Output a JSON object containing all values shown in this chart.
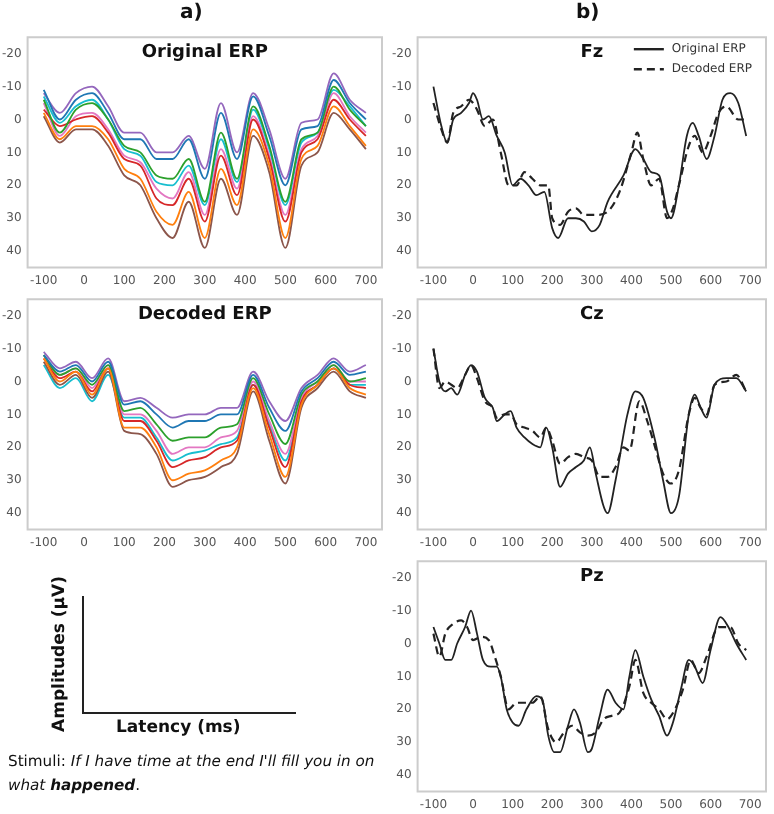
{
  "chart_data": [
    {
      "type": "line",
      "title": "Original ERP",
      "x": [
        -100,
        -60,
        -20,
        20,
        60,
        100,
        140,
        180,
        220,
        260,
        300,
        340,
        380,
        420,
        460,
        500,
        540,
        580,
        620,
        660,
        700
      ],
      "xlim": [
        -140,
        740
      ],
      "xticks": [
        -100,
        0,
        100,
        200,
        300,
        400,
        500,
        600,
        700
      ],
      "ylim": [
        45,
        -25
      ],
      "yticks": [
        -20,
        -10,
        0,
        10,
        20,
        30,
        40
      ],
      "marker": "none",
      "series": [
        {
          "color": "#1f77b4",
          "values": [
            -9,
            0,
            -6,
            -8,
            -2,
            6,
            6,
            12,
            12,
            6,
            18,
            -2,
            12,
            -7,
            5,
            20,
            3,
            2,
            -12,
            -5,
            0
          ]
        },
        {
          "color": "#ff7f0e",
          "values": [
            -2,
            6,
            2,
            2,
            6,
            15,
            18,
            28,
            32,
            22,
            36,
            15,
            26,
            3,
            14,
            36,
            12,
            8,
            -4,
            2,
            8
          ]
        },
        {
          "color": "#2ca02c",
          "values": [
            -6,
            4,
            -3,
            -5,
            0,
            8,
            10,
            17,
            18,
            12,
            25,
            4,
            18,
            -4,
            8,
            25,
            6,
            4,
            -10,
            -3,
            2
          ]
        },
        {
          "color": "#d62728",
          "values": [
            -3,
            2,
            0,
            -1,
            4,
            12,
            14,
            24,
            26,
            18,
            31,
            11,
            23,
            0,
            12,
            31,
            10,
            6,
            -6,
            0,
            5
          ]
        },
        {
          "color": "#9467bd",
          "values": [
            -8,
            -2,
            -8,
            -10,
            -4,
            4,
            4,
            10,
            10,
            5,
            15,
            -5,
            10,
            -8,
            3,
            18,
            1,
            0,
            -14,
            -6,
            -2
          ]
        },
        {
          "color": "#8c564b",
          "values": [
            -1,
            7,
            3,
            3,
            8,
            17,
            20,
            30,
            36,
            25,
            39,
            18,
            29,
            5,
            16,
            39,
            14,
            10,
            -2,
            3,
            9
          ]
        },
        {
          "color": "#e377c2",
          "values": [
            -5,
            5,
            -1,
            -2,
            3,
            11,
            13,
            21,
            24,
            16,
            29,
            9,
            21,
            -1,
            11,
            29,
            9,
            5,
            -8,
            -1,
            4
          ]
        },
        {
          "color": "#17becf",
          "values": [
            -7,
            1,
            -4,
            -6,
            0,
            9,
            11,
            19,
            20,
            14,
            26,
            6,
            19,
            -3,
            9,
            26,
            7,
            4,
            -9,
            -4,
            2
          ]
        }
      ]
    },
    {
      "type": "line",
      "title": "Decoded ERP",
      "x": [
        -100,
        -60,
        -20,
        20,
        60,
        100,
        140,
        180,
        220,
        260,
        300,
        340,
        380,
        420,
        460,
        500,
        540,
        580,
        620,
        660,
        700
      ],
      "xlim": [
        -140,
        740
      ],
      "xticks": [
        -100,
        0,
        100,
        200,
        300,
        400,
        500,
        600,
        700
      ],
      "ylim": [
        45,
        -25
      ],
      "yticks": [
        -20,
        -10,
        0,
        10,
        20,
        30,
        40
      ],
      "marker": "none",
      "series": [
        {
          "color": "#1f77b4",
          "values": [
            -8,
            -3,
            -5,
            0,
            -6,
            7,
            6,
            10,
            14,
            12,
            12,
            10,
            10,
            -2,
            8,
            15,
            3,
            -1,
            -6,
            -2,
            -3
          ]
        },
        {
          "color": "#ff7f0e",
          "values": [
            -7,
            0,
            -3,
            4,
            -4,
            14,
            14,
            20,
            30,
            28,
            27,
            24,
            20,
            2,
            16,
            29,
            7,
            1,
            -4,
            2,
            4
          ]
        },
        {
          "color": "#2ca02c",
          "values": [
            -8,
            -2,
            -4,
            1,
            -5,
            9,
            8,
            13,
            18,
            17,
            17,
            14,
            13,
            -1,
            10,
            19,
            4,
            0,
            -5,
            0,
            -1
          ]
        },
        {
          "color": "#d62728",
          "values": [
            -7,
            -1,
            -3,
            3,
            -4,
            12,
            12,
            18,
            26,
            24,
            23,
            20,
            18,
            1,
            14,
            26,
            6,
            1,
            -4,
            1,
            2
          ]
        },
        {
          "color": "#9467bd",
          "values": [
            -9,
            -4,
            -6,
            -1,
            -7,
            6,
            5,
            8,
            11,
            10,
            10,
            8,
            8,
            -3,
            6,
            12,
            2,
            -2,
            -7,
            -3,
            -5
          ]
        },
        {
          "color": "#8c564b",
          "values": [
            -6,
            1,
            -2,
            5,
            -3,
            15,
            16,
            22,
            32,
            30,
            29,
            26,
            22,
            3,
            18,
            31,
            8,
            2,
            -3,
            3,
            5
          ]
        },
        {
          "color": "#e377c2",
          "values": [
            -8,
            -2,
            -4,
            2,
            -5,
            10,
            10,
            15,
            22,
            20,
            20,
            17,
            15,
            0,
            12,
            22,
            5,
            0,
            -5,
            0,
            0
          ]
        },
        {
          "color": "#17becf",
          "values": [
            -5,
            2,
            -1,
            6,
            -2,
            11,
            11,
            17,
            24,
            22,
            21,
            19,
            17,
            1,
            13,
            24,
            6,
            1,
            -4,
            1,
            1
          ]
        }
      ]
    },
    {
      "type": "line",
      "title": "Fz",
      "xlim": [
        -140,
        740
      ],
      "xticks": [
        -100,
        0,
        100,
        200,
        300,
        400,
        500,
        600,
        700
      ],
      "ylim": [
        45,
        -25
      ],
      "yticks": [
        -20,
        -10,
        0,
        10,
        20,
        30,
        40
      ],
      "marker": "none",
      "legend": "top right",
      "series": [
        {
          "name": "Original ERP",
          "color": "#222222",
          "line_style": "solid",
          "x": [
            -100,
            -80,
            -65,
            -50,
            -30,
            -10,
            0,
            10,
            25,
            40,
            60,
            80,
            100,
            120,
            140,
            160,
            180,
            200,
            215,
            240,
            260,
            280,
            300,
            320,
            340,
            380,
            410,
            430,
            450,
            470,
            490,
            500,
            520,
            540,
            555,
            570,
            590,
            610,
            630,
            650,
            670,
            690
          ],
          "values": [
            -10,
            2,
            7,
            0,
            -2,
            -5,
            -8,
            -6,
            0,
            -1,
            5,
            10,
            20,
            18,
            20,
            23,
            22,
            33,
            36,
            30,
            30,
            31,
            34,
            32,
            25,
            17,
            9,
            12,
            16,
            17,
            28,
            30,
            20,
            5,
            1,
            5,
            12,
            5,
            -6,
            -8,
            -5,
            5
          ]
        },
        {
          "name": "Decoded ERP",
          "color": "#222222",
          "line_style": "dashed",
          "x": [
            -100,
            -80,
            -65,
            -50,
            -30,
            -10,
            0,
            10,
            30,
            50,
            70,
            90,
            110,
            130,
            150,
            170,
            190,
            200,
            220,
            240,
            260,
            280,
            310,
            340,
            370,
            400,
            415,
            430,
            450,
            470,
            490,
            505,
            520,
            545,
            560,
            580,
            600,
            620,
            640,
            670,
            690
          ],
          "values": [
            -5,
            3,
            7,
            -2,
            -4,
            -6,
            -5,
            -3,
            2,
            0,
            10,
            20,
            20,
            16,
            18,
            20,
            20,
            30,
            32,
            28,
            27,
            29,
            29,
            28,
            22,
            10,
            4,
            12,
            20,
            18,
            30,
            27,
            20,
            8,
            5,
            10,
            5,
            -2,
            -4,
            0,
            0
          ]
        }
      ]
    },
    {
      "type": "line",
      "title": "Cz",
      "xlim": [
        -140,
        740
      ],
      "xticks": [
        -100,
        0,
        100,
        200,
        300,
        400,
        500,
        600,
        700
      ],
      "ylim": [
        45,
        -25
      ],
      "yticks": [
        -20,
        -10,
        0,
        10,
        20,
        30,
        40
      ],
      "marker": "none",
      "series": [
        {
          "color": "#222222",
          "line_style": "solid",
          "x": [
            -100,
            -85,
            -70,
            -55,
            -40,
            -20,
            -5,
            10,
            30,
            50,
            60,
            80,
            95,
            110,
            130,
            150,
            170,
            185,
            200,
            220,
            240,
            260,
            280,
            295,
            310,
            330,
            340,
            360,
            390,
            410,
            430,
            460,
            480,
            500,
            520,
            545,
            560,
            575,
            590,
            610,
            640,
            665,
            690
          ],
          "values": [
            -10,
            0,
            3,
            2,
            4,
            -2,
            -5,
            -3,
            5,
            8,
            12,
            10,
            9,
            14,
            17,
            19,
            20,
            14,
            20,
            32,
            28,
            26,
            24,
            20,
            28,
            38,
            40,
            30,
            10,
            3,
            5,
            18,
            30,
            40,
            35,
            10,
            4,
            8,
            11,
            1,
            -1,
            -1,
            3
          ]
        },
        {
          "color": "#222222",
          "line_style": "dashed",
          "x": [
            -100,
            -85,
            -70,
            -55,
            -40,
            -20,
            -5,
            10,
            30,
            50,
            60,
            80,
            95,
            110,
            130,
            150,
            170,
            185,
            200,
            220,
            240,
            260,
            280,
            300,
            320,
            340,
            360,
            380,
            395,
            420,
            440,
            460,
            480,
            500,
            520,
            545,
            560,
            575,
            590,
            610,
            640,
            665,
            690
          ],
          "values": [
            -10,
            2,
            0,
            1,
            2,
            -2,
            -5,
            -1,
            6,
            8,
            11,
            10,
            10,
            13,
            14,
            15,
            17,
            14,
            18,
            25,
            23,
            22,
            23,
            24,
            29,
            29,
            26,
            20,
            21,
            6,
            12,
            20,
            28,
            31,
            27,
            10,
            5,
            8,
            10,
            1,
            0,
            -2,
            3
          ]
        }
      ]
    },
    {
      "type": "line",
      "title": "Pz",
      "xlim": [
        -140,
        740
      ],
      "xticks": [
        -100,
        0,
        100,
        200,
        300,
        400,
        500,
        600,
        700
      ],
      "ylim": [
        45,
        -25
      ],
      "yticks": [
        -20,
        -10,
        0,
        10,
        20,
        30,
        40
      ],
      "marker": "none",
      "series": [
        {
          "color": "#222222",
          "line_style": "solid",
          "x": [
            -100,
            -85,
            -70,
            -55,
            -40,
            -20,
            -5,
            10,
            25,
            45,
            60,
            70,
            85,
            100,
            115,
            135,
            160,
            175,
            190,
            205,
            220,
            240,
            255,
            270,
            290,
            300,
            320,
            340,
            360,
            380,
            395,
            410,
            430,
            450,
            470,
            490,
            505,
            525,
            545,
            560,
            580,
            600,
            625,
            645,
            665,
            690
          ],
          "values": [
            -5,
            0,
            5,
            5,
            0,
            -5,
            -10,
            -3,
            5,
            7,
            7,
            10,
            20,
            24,
            25,
            20,
            16,
            17,
            28,
            33,
            33,
            25,
            20,
            24,
            33,
            32,
            22,
            14,
            18,
            20,
            10,
            2,
            10,
            17,
            22,
            28,
            24,
            14,
            5,
            7,
            12,
            2,
            -8,
            -5,
            0,
            5
          ]
        },
        {
          "color": "#222222",
          "line_style": "dashed",
          "x": [
            -100,
            -85,
            -70,
            -50,
            -30,
            -15,
            0,
            20,
            40,
            55,
            70,
            90,
            110,
            130,
            150,
            170,
            190,
            210,
            230,
            250,
            270,
            290,
            310,
            330,
            350,
            370,
            395,
            410,
            430,
            450,
            470,
            490,
            510,
            530,
            550,
            570,
            590,
            620,
            650,
            670,
            690
          ],
          "values": [
            -3,
            4,
            -3,
            -6,
            -7,
            -5,
            -1,
            -2,
            -1,
            4,
            10,
            20,
            18,
            18,
            18,
            16,
            26,
            30,
            27,
            25,
            27,
            28,
            27,
            23,
            22,
            21,
            13,
            5,
            15,
            18,
            20,
            23,
            20,
            14,
            5,
            9,
            4,
            -5,
            -5,
            0,
            2
          ]
        }
      ]
    },
    {
      "type": "other",
      "annotations": [
        "a)",
        "b)",
        "Amplitudes (µV)",
        "Latency (ms)",
        "Stimuli:",
        "If I have time at the end I'll fill you in on what",
        "happened",
        "."
      ]
    }
  ]
}
